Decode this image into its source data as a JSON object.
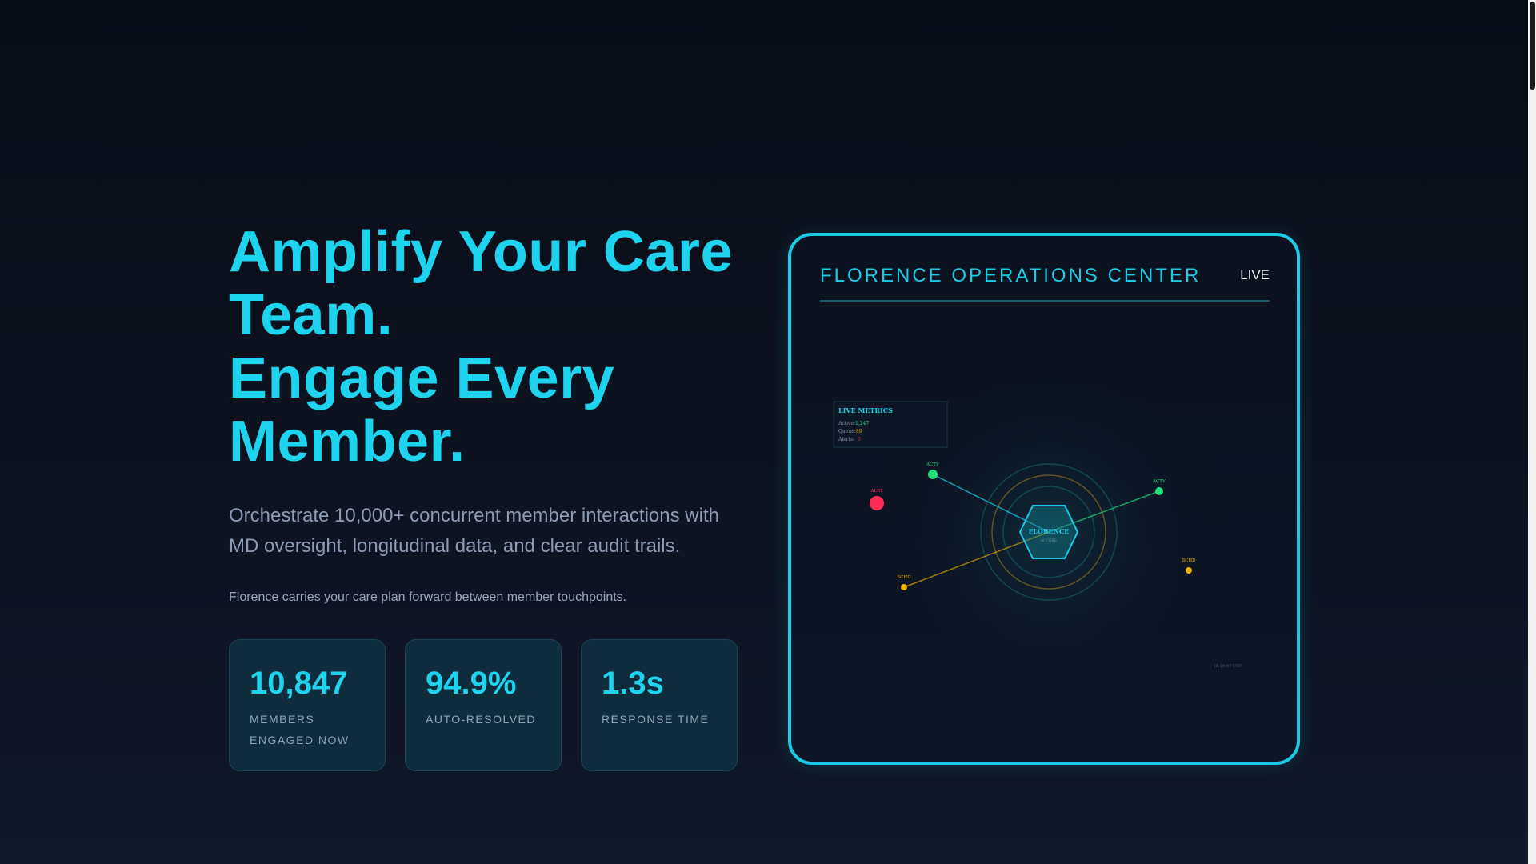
{
  "hero": {
    "headline_lines": [
      "Amplify Your Care",
      "Team.",
      "Engage Every",
      "Member."
    ],
    "lead": "Orchestrate 10,000+ concurrent member interactions with MD oversight, longitudinal data, and clear audit trails.",
    "note": "Florence carries your care plan forward between member touchpoints."
  },
  "stats": [
    {
      "value": "10,847",
      "label": "Members engaged now"
    },
    {
      "value": "94.9%",
      "label": "Auto-resolved"
    },
    {
      "value": "1.3s",
      "label": "Response time"
    }
  ],
  "ops_panel": {
    "title": "FLORENCE OPERATIONS CENTER",
    "live_label": "LIVE",
    "metrics": {
      "title": "LIVE METRICS",
      "active_label": "Active:",
      "active_value": "1,247",
      "queue_label": "Queue:",
      "queue_value": "89",
      "alerts_label": "Alerts:",
      "alerts_value": "3"
    },
    "hub": {
      "label": "FLORENCE",
      "sublabel": "AI CORE"
    },
    "nodes": [
      {
        "label": "ACTV",
        "status": "active"
      },
      {
        "label": "ALRT",
        "status": "alert"
      },
      {
        "label": "ACTV",
        "status": "active"
      },
      {
        "label": "SCHD",
        "status": "scheduled"
      },
      {
        "label": "SCHD",
        "status": "scheduled"
      }
    ],
    "timestamp": "18:19:07 UTC"
  },
  "colors": {
    "accent": "#19cbe6",
    "active": "#22e07a",
    "alert": "#ff2d55",
    "scheduled": "#f0b000"
  }
}
